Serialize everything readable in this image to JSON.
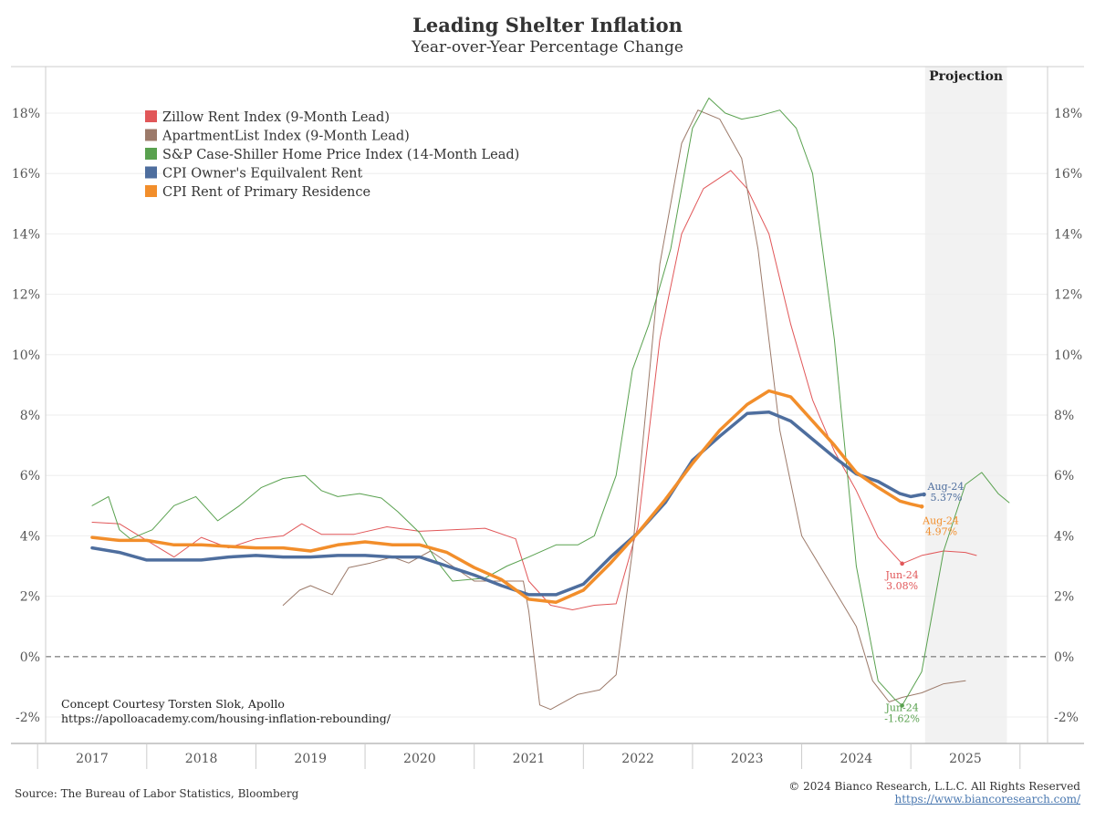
{
  "header": {
    "title": "Leading Shelter Inflation",
    "subtitle": "Year-over-Year Percentage Change"
  },
  "footer": {
    "source": "Source: The Bureau of Labor Statistics, Bloomberg",
    "copyright": "© 2024 Bianco Research, L.L.C. All Rights Reserved",
    "url": "https://www.biancoresearch.com/"
  },
  "notes": {
    "line1": "Concept Courtesy Torsten Slok, Apollo",
    "line2": "https://apolloacademy.com/housing-inflation-rebounding/"
  },
  "chart_data": {
    "type": "line",
    "title": "Leading Shelter Inflation",
    "subtitle": "Year-over-Year Percentage Change",
    "xlim": [
      2016.6,
      2025.85
    ],
    "ylim": [
      -3,
      19
    ],
    "yticks": [
      -2,
      0,
      2,
      4,
      6,
      8,
      10,
      12,
      14,
      16,
      18
    ],
    "ytick_labels": [
      "-2%",
      "0%",
      "2%",
      "4%",
      "6%",
      "8%",
      "10%",
      "12%",
      "14%",
      "16%",
      "18%"
    ],
    "xticks": [
      2017,
      2018,
      2019,
      2020,
      2021,
      2022,
      2023,
      2024,
      2025
    ],
    "xtick_labels": [
      "2017",
      "2018",
      "2019",
      "2020",
      "2021",
      "2022",
      "2023",
      "2024",
      "2025"
    ],
    "projection": {
      "label": "Projection",
      "start": 2024.63,
      "end": 2025.38
    },
    "zero_line": true,
    "series": [
      {
        "name": "Zillow Rent Index (9-Month Lead)",
        "color": "#e15759",
        "width": 1,
        "x": [
          2017.0,
          2017.25,
          2017.5,
          2017.75,
          2018.0,
          2018.25,
          2018.5,
          2018.75,
          2018.92,
          2019.1,
          2019.4,
          2019.7,
          2020.0,
          2020.3,
          2020.6,
          2020.88,
          2021.0,
          2021.2,
          2021.4,
          2021.6,
          2021.8,
          2022.0,
          2022.2,
          2022.4,
          2022.6,
          2022.85,
          2023.0,
          2023.2,
          2023.4,
          2023.6,
          2023.8,
          2024.0,
          2024.2,
          2024.42,
          2024.6,
          2024.8,
          2025.0,
          2025.1
        ],
        "y": [
          4.45,
          4.4,
          3.85,
          3.3,
          3.95,
          3.6,
          3.9,
          4.0,
          4.4,
          4.05,
          4.05,
          4.3,
          4.15,
          4.2,
          4.25,
          3.9,
          2.5,
          1.7,
          1.55,
          1.7,
          1.75,
          4.3,
          10.5,
          14.0,
          15.5,
          16.1,
          15.5,
          14.0,
          11.0,
          8.5,
          6.8,
          5.5,
          3.95,
          3.08,
          3.35,
          3.5,
          3.45,
          3.35
        ]
      },
      {
        "name": "ApartmentList Index (9-Month Lead)",
        "color": "#9c7a6a",
        "width": 1,
        "x": [
          2018.75,
          2018.9,
          2019.0,
          2019.2,
          2019.35,
          2019.55,
          2019.75,
          2019.9,
          2020.1,
          2020.3,
          2020.5,
          2020.75,
          2020.95,
          2021.0,
          2021.1,
          2021.2,
          2021.45,
          2021.65,
          2021.8,
          2021.95,
          2022.2,
          2022.4,
          2022.55,
          2022.75,
          2022.95,
          2023.1,
          2023.3,
          2023.5,
          2023.75,
          2024.0,
          2024.15,
          2024.3,
          2024.42,
          2024.6,
          2024.8,
          2025.0
        ],
        "y": [
          1.7,
          2.2,
          2.35,
          2.05,
          2.95,
          3.1,
          3.3,
          3.1,
          3.5,
          3.0,
          2.5,
          2.5,
          2.5,
          1.5,
          -1.6,
          -1.75,
          -1.25,
          -1.1,
          -0.6,
          3.5,
          13.0,
          17.0,
          18.1,
          17.8,
          16.5,
          13.5,
          7.5,
          4.0,
          2.5,
          1.0,
          -0.8,
          -1.5,
          -1.35,
          -1.2,
          -0.9,
          -0.8
        ]
      },
      {
        "name": "S&P Case-Shiller Home Price Index (14-Month Lead)",
        "color": "#59a14f",
        "width": 1,
        "x": [
          2017.0,
          2017.15,
          2017.25,
          2017.35,
          2017.55,
          2017.75,
          2017.95,
          2018.15,
          2018.35,
          2018.55,
          2018.75,
          2018.95,
          2019.1,
          2019.25,
          2019.45,
          2019.65,
          2019.8,
          2020.0,
          2020.15,
          2020.3,
          2020.6,
          2020.8,
          2021.0,
          2021.25,
          2021.45,
          2021.6,
          2021.8,
          2021.95,
          2022.1,
          2022.3,
          2022.5,
          2022.65,
          2022.8,
          2022.95,
          2023.1,
          2023.3,
          2023.45,
          2023.6,
          2023.8,
          2024.0,
          2024.2,
          2024.35,
          2024.42,
          2024.6,
          2024.8,
          2025.0,
          2025.15,
          2025.3,
          2025.4
        ],
        "y": [
          5.0,
          5.3,
          4.2,
          3.9,
          4.2,
          5.0,
          5.3,
          4.5,
          5.0,
          5.6,
          5.9,
          6.0,
          5.5,
          5.3,
          5.4,
          5.25,
          4.8,
          4.1,
          3.2,
          2.5,
          2.6,
          3.0,
          3.3,
          3.7,
          3.7,
          4.0,
          6.0,
          9.5,
          11.0,
          13.5,
          17.5,
          18.5,
          18.0,
          17.8,
          17.9,
          18.1,
          17.5,
          16.0,
          10.5,
          3.0,
          -0.8,
          -1.4,
          -1.62,
          -0.5,
          3.5,
          5.7,
          6.1,
          5.4,
          5.1
        ]
      },
      {
        "name": "CPI Owner's Equilvalent Rent",
        "color": "#4e6e9e",
        "width": 3.5,
        "x": [
          2017.0,
          2017.25,
          2017.5,
          2017.75,
          2018.0,
          2018.25,
          2018.5,
          2018.75,
          2019.0,
          2019.25,
          2019.5,
          2019.75,
          2020.0,
          2020.25,
          2020.5,
          2020.75,
          2021.0,
          2021.25,
          2021.5,
          2021.75,
          2022.0,
          2022.25,
          2022.5,
          2022.75,
          2023.0,
          2023.2,
          2023.4,
          2023.6,
          2023.8,
          2024.0,
          2024.2,
          2024.4,
          2024.5,
          2024.6
        ],
        "y": [
          3.6,
          3.45,
          3.2,
          3.2,
          3.2,
          3.3,
          3.35,
          3.3,
          3.3,
          3.35,
          3.35,
          3.3,
          3.3,
          3.0,
          2.7,
          2.35,
          2.05,
          2.05,
          2.4,
          3.3,
          4.1,
          5.1,
          6.5,
          7.3,
          8.05,
          8.1,
          7.8,
          7.2,
          6.6,
          6.05,
          5.8,
          5.4,
          5.3,
          5.37
        ]
      },
      {
        "name": "CPI Rent of Primary Residence",
        "color": "#f28e2b",
        "width": 3.5,
        "x": [
          2017.0,
          2017.25,
          2017.5,
          2017.75,
          2018.0,
          2018.25,
          2018.5,
          2018.75,
          2019.0,
          2019.25,
          2019.5,
          2019.75,
          2020.0,
          2020.25,
          2020.5,
          2020.75,
          2021.0,
          2021.25,
          2021.5,
          2021.75,
          2022.0,
          2022.25,
          2022.5,
          2022.75,
          2023.0,
          2023.2,
          2023.4,
          2023.6,
          2023.8,
          2024.0,
          2024.2,
          2024.4,
          2024.5,
          2024.6
        ],
        "y": [
          3.95,
          3.85,
          3.85,
          3.7,
          3.7,
          3.65,
          3.6,
          3.6,
          3.5,
          3.7,
          3.8,
          3.7,
          3.7,
          3.45,
          2.95,
          2.55,
          1.9,
          1.8,
          2.2,
          3.1,
          4.1,
          5.2,
          6.4,
          7.5,
          8.35,
          8.8,
          8.6,
          7.8,
          7.0,
          6.1,
          5.6,
          5.15,
          5.05,
          4.97
        ]
      }
    ],
    "annotations": [
      {
        "date": "Aug-24",
        "value": "5.37%",
        "x": 2024.62,
        "y": 5.37,
        "color": "#4e6e9e"
      },
      {
        "date": "Aug-24",
        "value": "4.97%",
        "x": 2024.6,
        "y": 4.97,
        "color": "#f28e2b"
      },
      {
        "date": "Jun-24",
        "value": "3.08%",
        "x": 2024.42,
        "y": 3.08,
        "color": "#e15759"
      },
      {
        "date": "Jun-24",
        "value": "-1.62%",
        "x": 2024.42,
        "y": -1.62,
        "color": "#59a14f"
      }
    ]
  }
}
